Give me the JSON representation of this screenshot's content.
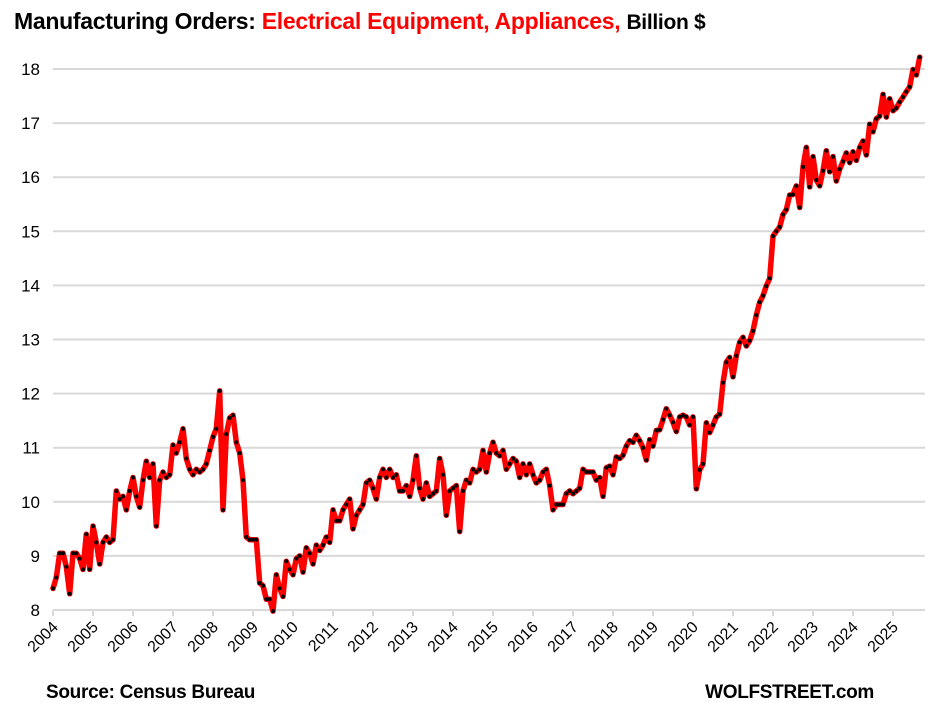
{
  "title": {
    "part1": "Manufacturing Orders: ",
    "part2": "Electrical Equipment, Appliances,",
    "part3": "Billion $"
  },
  "footer": {
    "source": "Source: Census Bureau",
    "brand": "WOLFSTREET.com"
  },
  "colors": {
    "line": "#ff0000",
    "marker": "#000000",
    "grid": "#d9d9d9",
    "title_highlight": "#ff0000"
  },
  "chart_data": {
    "type": "line",
    "title": "Manufacturing Orders: Electrical Equipment, Appliances, Billion $",
    "xlabel": "",
    "ylabel": "Billion $",
    "frequency": "monthly",
    "start": "2004-01",
    "ylim": [
      8,
      18
    ],
    "yticks": [
      8,
      9,
      10,
      11,
      12,
      13,
      14,
      15,
      16,
      17,
      18
    ],
    "xtick_labels": [
      "2004",
      "2005",
      "2006",
      "2007",
      "2008",
      "2009",
      "2010",
      "2011",
      "2012",
      "2013",
      "2014",
      "2015",
      "2016",
      "2017",
      "2018",
      "2019",
      "2020",
      "2021",
      "2022",
      "2023",
      "2024",
      "2025"
    ],
    "grid": true,
    "legend": "none",
    "series": [
      {
        "name": "Electrical Equipment, Appliances",
        "values": [
          8.4,
          8.6,
          9.05,
          9.05,
          8.8,
          8.3,
          9.05,
          9.05,
          8.95,
          8.75,
          9.4,
          8.75,
          9.55,
          9.25,
          8.85,
          9.25,
          9.35,
          9.25,
          9.3,
          10.2,
          10.05,
          10.1,
          9.85,
          10.2,
          10.45,
          10.1,
          9.9,
          10.4,
          10.75,
          10.45,
          10.7,
          9.55,
          10.4,
          10.55,
          10.45,
          10.5,
          11.05,
          10.9,
          11.1,
          11.35,
          10.8,
          10.6,
          10.5,
          10.6,
          10.55,
          10.6,
          10.7,
          10.95,
          11.2,
          11.35,
          12.05,
          9.85,
          11.25,
          11.55,
          11.6,
          11.1,
          10.9,
          10.4,
          9.35,
          9.3,
          9.3,
          9.3,
          8.5,
          8.45,
          8.2,
          8.2,
          7.98,
          8.65,
          8.4,
          8.25,
          8.9,
          8.75,
          8.65,
          8.95,
          9.0,
          8.7,
          9.15,
          9.05,
          8.85,
          9.2,
          9.1,
          9.2,
          9.35,
          9.25,
          9.85,
          9.65,
          9.65,
          9.85,
          9.95,
          10.05,
          9.5,
          9.75,
          9.85,
          9.95,
          10.35,
          10.4,
          10.25,
          10.05,
          10.45,
          10.6,
          10.45,
          10.6,
          10.45,
          10.5,
          10.2,
          10.2,
          10.3,
          10.1,
          10.4,
          10.85,
          10.25,
          10.05,
          10.35,
          10.1,
          10.15,
          10.2,
          10.8,
          10.5,
          9.75,
          10.2,
          10.25,
          10.3,
          9.45,
          10.2,
          10.4,
          10.35,
          10.6,
          10.55,
          10.6,
          10.95,
          10.55,
          10.9,
          11.1,
          10.9,
          10.85,
          10.95,
          10.6,
          10.7,
          10.8,
          10.75,
          10.45,
          10.7,
          10.5,
          10.7,
          10.5,
          10.35,
          10.4,
          10.55,
          10.6,
          10.3,
          9.85,
          9.95,
          9.95,
          9.95,
          10.15,
          10.2,
          10.15,
          10.2,
          10.25,
          10.6,
          10.55,
          10.55,
          10.55,
          10.4,
          10.45,
          10.1,
          10.63,
          10.66,
          10.5,
          10.83,
          10.8,
          10.86,
          11.03,
          11.13,
          11.1,
          11.23,
          11.13,
          11.0,
          10.77,
          11.15,
          11.03,
          11.32,
          11.33,
          11.52,
          11.72,
          11.6,
          11.47,
          11.3,
          11.57,
          11.6,
          11.57,
          11.42,
          11.57,
          10.24,
          10.59,
          10.7,
          11.46,
          11.28,
          11.42,
          11.57,
          11.62,
          12.2,
          12.58,
          12.67,
          12.31,
          12.7,
          12.95,
          13.04,
          12.88,
          12.98,
          13.16,
          13.45,
          13.69,
          13.81,
          13.99,
          14.13,
          14.91,
          15.0,
          15.08,
          15.31,
          15.4,
          15.67,
          15.68,
          15.84,
          15.44,
          16.19,
          16.55,
          15.82,
          16.38,
          15.95,
          15.84,
          16.12,
          16.49,
          16.1,
          16.38,
          15.93,
          16.15,
          16.29,
          16.45,
          16.27,
          16.47,
          16.31,
          16.55,
          16.67,
          16.41,
          16.98,
          16.84,
          17.08,
          17.13,
          17.53,
          17.11,
          17.45,
          17.23,
          17.28,
          17.39,
          17.48,
          17.58,
          17.67,
          17.99,
          17.89,
          18.22
        ]
      }
    ]
  }
}
